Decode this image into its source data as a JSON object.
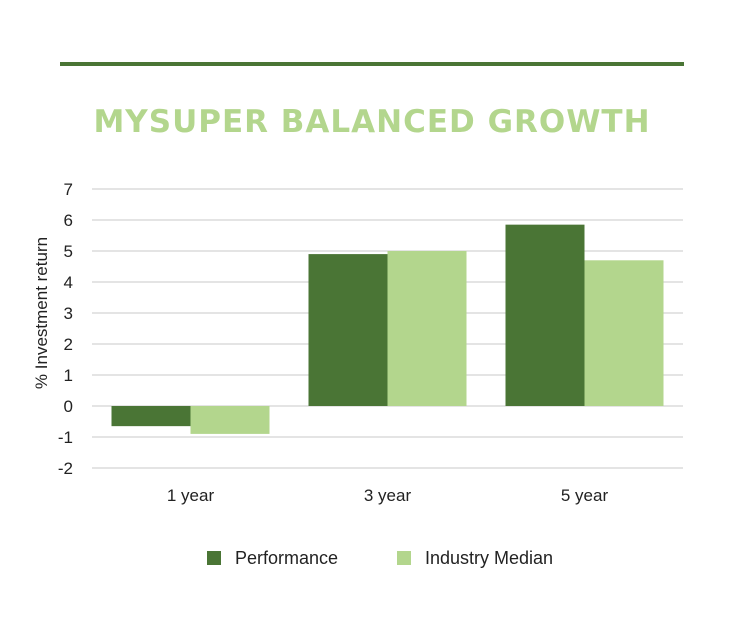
{
  "chart_data": {
    "type": "bar",
    "title": "MYSUPER BALANCED GROWTH",
    "ylabel": "% Investment return",
    "xlabel": "",
    "categories": [
      "1 year",
      "3 year",
      "5 year"
    ],
    "series": [
      {
        "name": "Performance",
        "color": "#4a7535",
        "values": [
          -0.65,
          4.9,
          5.85
        ]
      },
      {
        "name": "Industry Median",
        "color": "#b3d68d",
        "values": [
          -0.9,
          5.0,
          4.7
        ]
      }
    ],
    "ylim": [
      -2,
      7
    ],
    "yticks": [
      "-2",
      "-1",
      "0",
      "1",
      "2",
      "3",
      "4",
      "5",
      "6",
      "7"
    ],
    "grid": true,
    "legend": "bottom"
  }
}
